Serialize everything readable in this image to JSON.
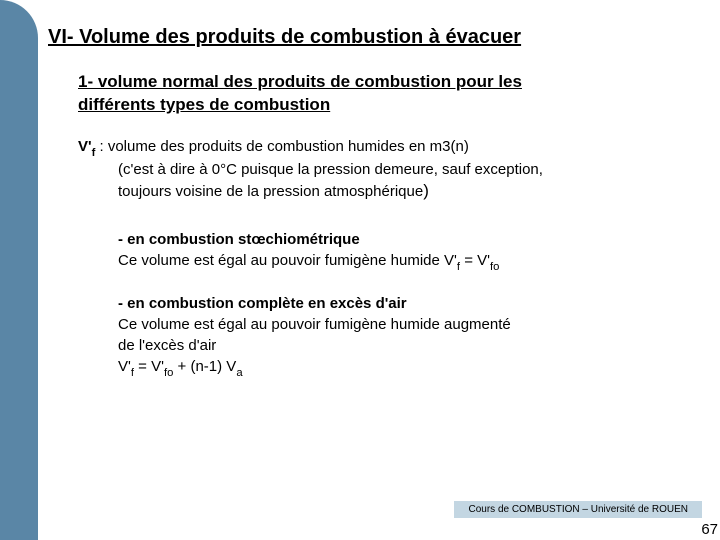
{
  "colors": {
    "sidebar": "#5a86a6",
    "footer_bg": "#c3d6e2",
    "text": "#000000",
    "background": "#ffffff"
  },
  "title": "VI- Volume des produits de combustion à évacuer",
  "subtitle_l1": "1- volume normal des produits de combustion pour les",
  "subtitle_l2": "différents types de combustion",
  "p1_lead": "V'",
  "p1_sub": "f",
  "p1_tail": " : volume des produits de combustion humides en m3(n)",
  "p1_line2": "(c'est à dire à 0°C puisque la pression demeure, sauf exception,",
  "p1_line3a": "toujours voisine de la pression atmosphérique",
  "p1_line3b": ")",
  "s1_head": "- en combustion stœchiométrique",
  "s1_body_a": "Ce volume est égal au pouvoir fumigène humide   V'",
  "s1_body_b": " = V'",
  "s2_head": "- en combustion complète en excès d'air",
  "s2_l1": "Ce volume est égal au pouvoir fumigène humide augmenté",
  "s2_l2": "de l'excès d'air",
  "s2_eq_a": " V'",
  "s2_eq_b": " = V'",
  "s2_eq_c": " + (n-1) V",
  "sub_f": "f",
  "sub_fo": "fo",
  "sub_a": "a",
  "footer": "Cours de COMBUSTION – Université de ROUEN",
  "page": "67"
}
